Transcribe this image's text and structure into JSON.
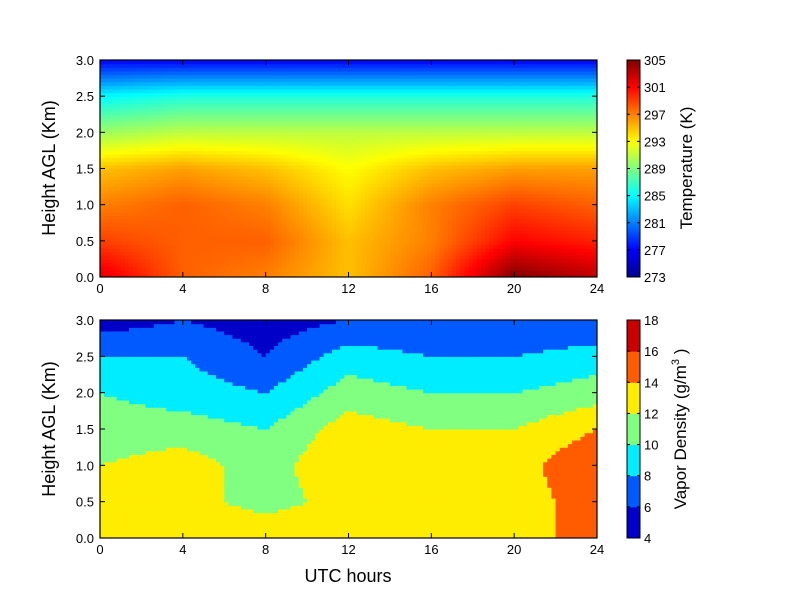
{
  "chart_data": [
    {
      "type": "heatmap",
      "title": "",
      "xlabel": "",
      "ylabel": "Height AGL (Km)",
      "xlim": [
        0,
        24
      ],
      "ylim": [
        0.0,
        3.0
      ],
      "x_ticks": [
        "0",
        "4",
        "8",
        "12",
        "16",
        "20",
        "24"
      ],
      "y_ticks": [
        "0.0",
        "0.5",
        "1.0",
        "1.5",
        "2.0",
        "2.5",
        "3.0"
      ],
      "colorbar": {
        "label": "Temperature (K)",
        "min": 273,
        "max": 305,
        "ticks": [
          "273",
          "277",
          "281",
          "285",
          "289",
          "293",
          "297",
          "301",
          "305"
        ]
      },
      "colormap": "jet",
      "approximate_field": {
        "description_of_axes": "rows = height km, columns = UTC hours",
        "heights_km": [
          0.0,
          0.5,
          1.0,
          1.5,
          2.0,
          2.5,
          3.0
        ],
        "hours": [
          0,
          4,
          8,
          12,
          16,
          20,
          24
        ],
        "values_K": [
          [
            302,
            298,
            297,
            295,
            298,
            305,
            303
          ],
          [
            299,
            298,
            298,
            295,
            297,
            301,
            300
          ],
          [
            297,
            298,
            297,
            294,
            297,
            299,
            298
          ],
          [
            295,
            296,
            295,
            293,
            295,
            296,
            296
          ],
          [
            290,
            291,
            291,
            291,
            291,
            291,
            291
          ],
          [
            285,
            286,
            286,
            286,
            286,
            286,
            286
          ],
          [
            277,
            277,
            277,
            277,
            277,
            277,
            277
          ]
        ]
      }
    },
    {
      "type": "heatmap",
      "title": "",
      "xlabel": "UTC hours",
      "ylabel": "Height AGL (Km)",
      "xlim": [
        0,
        24
      ],
      "ylim": [
        0.0,
        3.0
      ],
      "x_ticks": [
        "0",
        "4",
        "8",
        "12",
        "16",
        "20",
        "24"
      ],
      "y_ticks": [
        "0.0",
        "0.5",
        "1.0",
        "1.5",
        "2.0",
        "2.5",
        "3.0"
      ],
      "colorbar": {
        "label_prefix": "Vapor Density (g/m",
        "label_sup": "3",
        "label_suffix": " )",
        "min": 4,
        "max": 18,
        "ticks": [
          "4",
          "6",
          "8",
          "10",
          "12",
          "14",
          "16",
          "18"
        ]
      },
      "colormap": "jet-banded",
      "approximate_field": {
        "description_of_axes": "rows = height km, columns = UTC hours",
        "heights_km": [
          0.0,
          0.5,
          1.0,
          1.5,
          2.0,
          2.5,
          3.0
        ],
        "hours": [
          0,
          4,
          8,
          12,
          16,
          20,
          24
        ],
        "values_g_m3": [
          [
            13,
            14,
            14,
            14,
            13,
            13,
            15
          ],
          [
            12,
            13,
            11,
            13,
            13,
            13,
            15
          ],
          [
            12,
            13,
            11,
            14,
            13,
            13,
            16
          ],
          [
            11,
            11,
            10,
            13,
            12,
            12,
            14
          ],
          [
            10,
            9,
            8,
            11,
            10,
            10,
            11
          ],
          [
            8,
            8,
            6,
            9,
            8,
            8,
            9
          ],
          [
            5,
            6,
            5,
            6,
            6,
            6,
            6
          ]
        ]
      }
    }
  ]
}
